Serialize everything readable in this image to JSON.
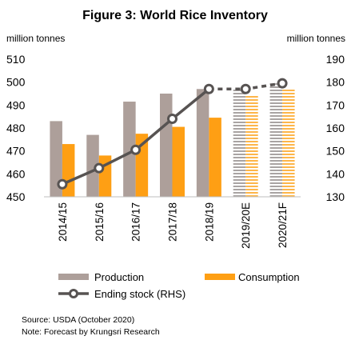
{
  "title": "Figure 3: World Rice Inventory",
  "left_unit": "million tonnes",
  "right_unit": "million tonnes",
  "legend": {
    "production": "Production",
    "consumption": "Consumption",
    "ending_stock": "Ending stock (RHS)"
  },
  "source": "Source: USDA (October 2020)",
  "note": "Note: Forecast by Krungsri Research",
  "colors": {
    "production": "#ad9f9a",
    "consumption": "#fe9f14",
    "line": "#575352",
    "forecast_stripe_a": "#a9a4a3",
    "forecast_stripe_b": "#fdb64a"
  },
  "chart_data": {
    "type": "bar",
    "categories": [
      "2014/15",
      "2015/16",
      "2016/17",
      "2017/18",
      "2018/19",
      "2019/20E",
      "2020/21F"
    ],
    "forecast_categories": [
      "2019/20E",
      "2020/21F"
    ],
    "series": [
      {
        "name": "Production",
        "type": "bar",
        "axis": "left",
        "values": [
          483,
          477,
          491.5,
          495,
          497,
          497,
          499.5
        ]
      },
      {
        "name": "Consumption",
        "type": "bar",
        "axis": "left",
        "values": [
          473,
          468,
          477.5,
          480.5,
          484.5,
          494.5,
          497
        ]
      },
      {
        "name": "Ending stock (RHS)",
        "type": "line",
        "axis": "right",
        "values": [
          135.5,
          142.5,
          150.5,
          164,
          177,
          177,
          179.5
        ]
      }
    ],
    "ylim_left": [
      450,
      510
    ],
    "yticks_left": [
      450,
      460,
      470,
      480,
      490,
      500,
      510
    ],
    "ylim_right": [
      130,
      190
    ],
    "yticks_right": [
      130,
      140,
      150,
      160,
      170,
      180,
      190
    ],
    "grid": false,
    "legend_position": "bottom"
  }
}
